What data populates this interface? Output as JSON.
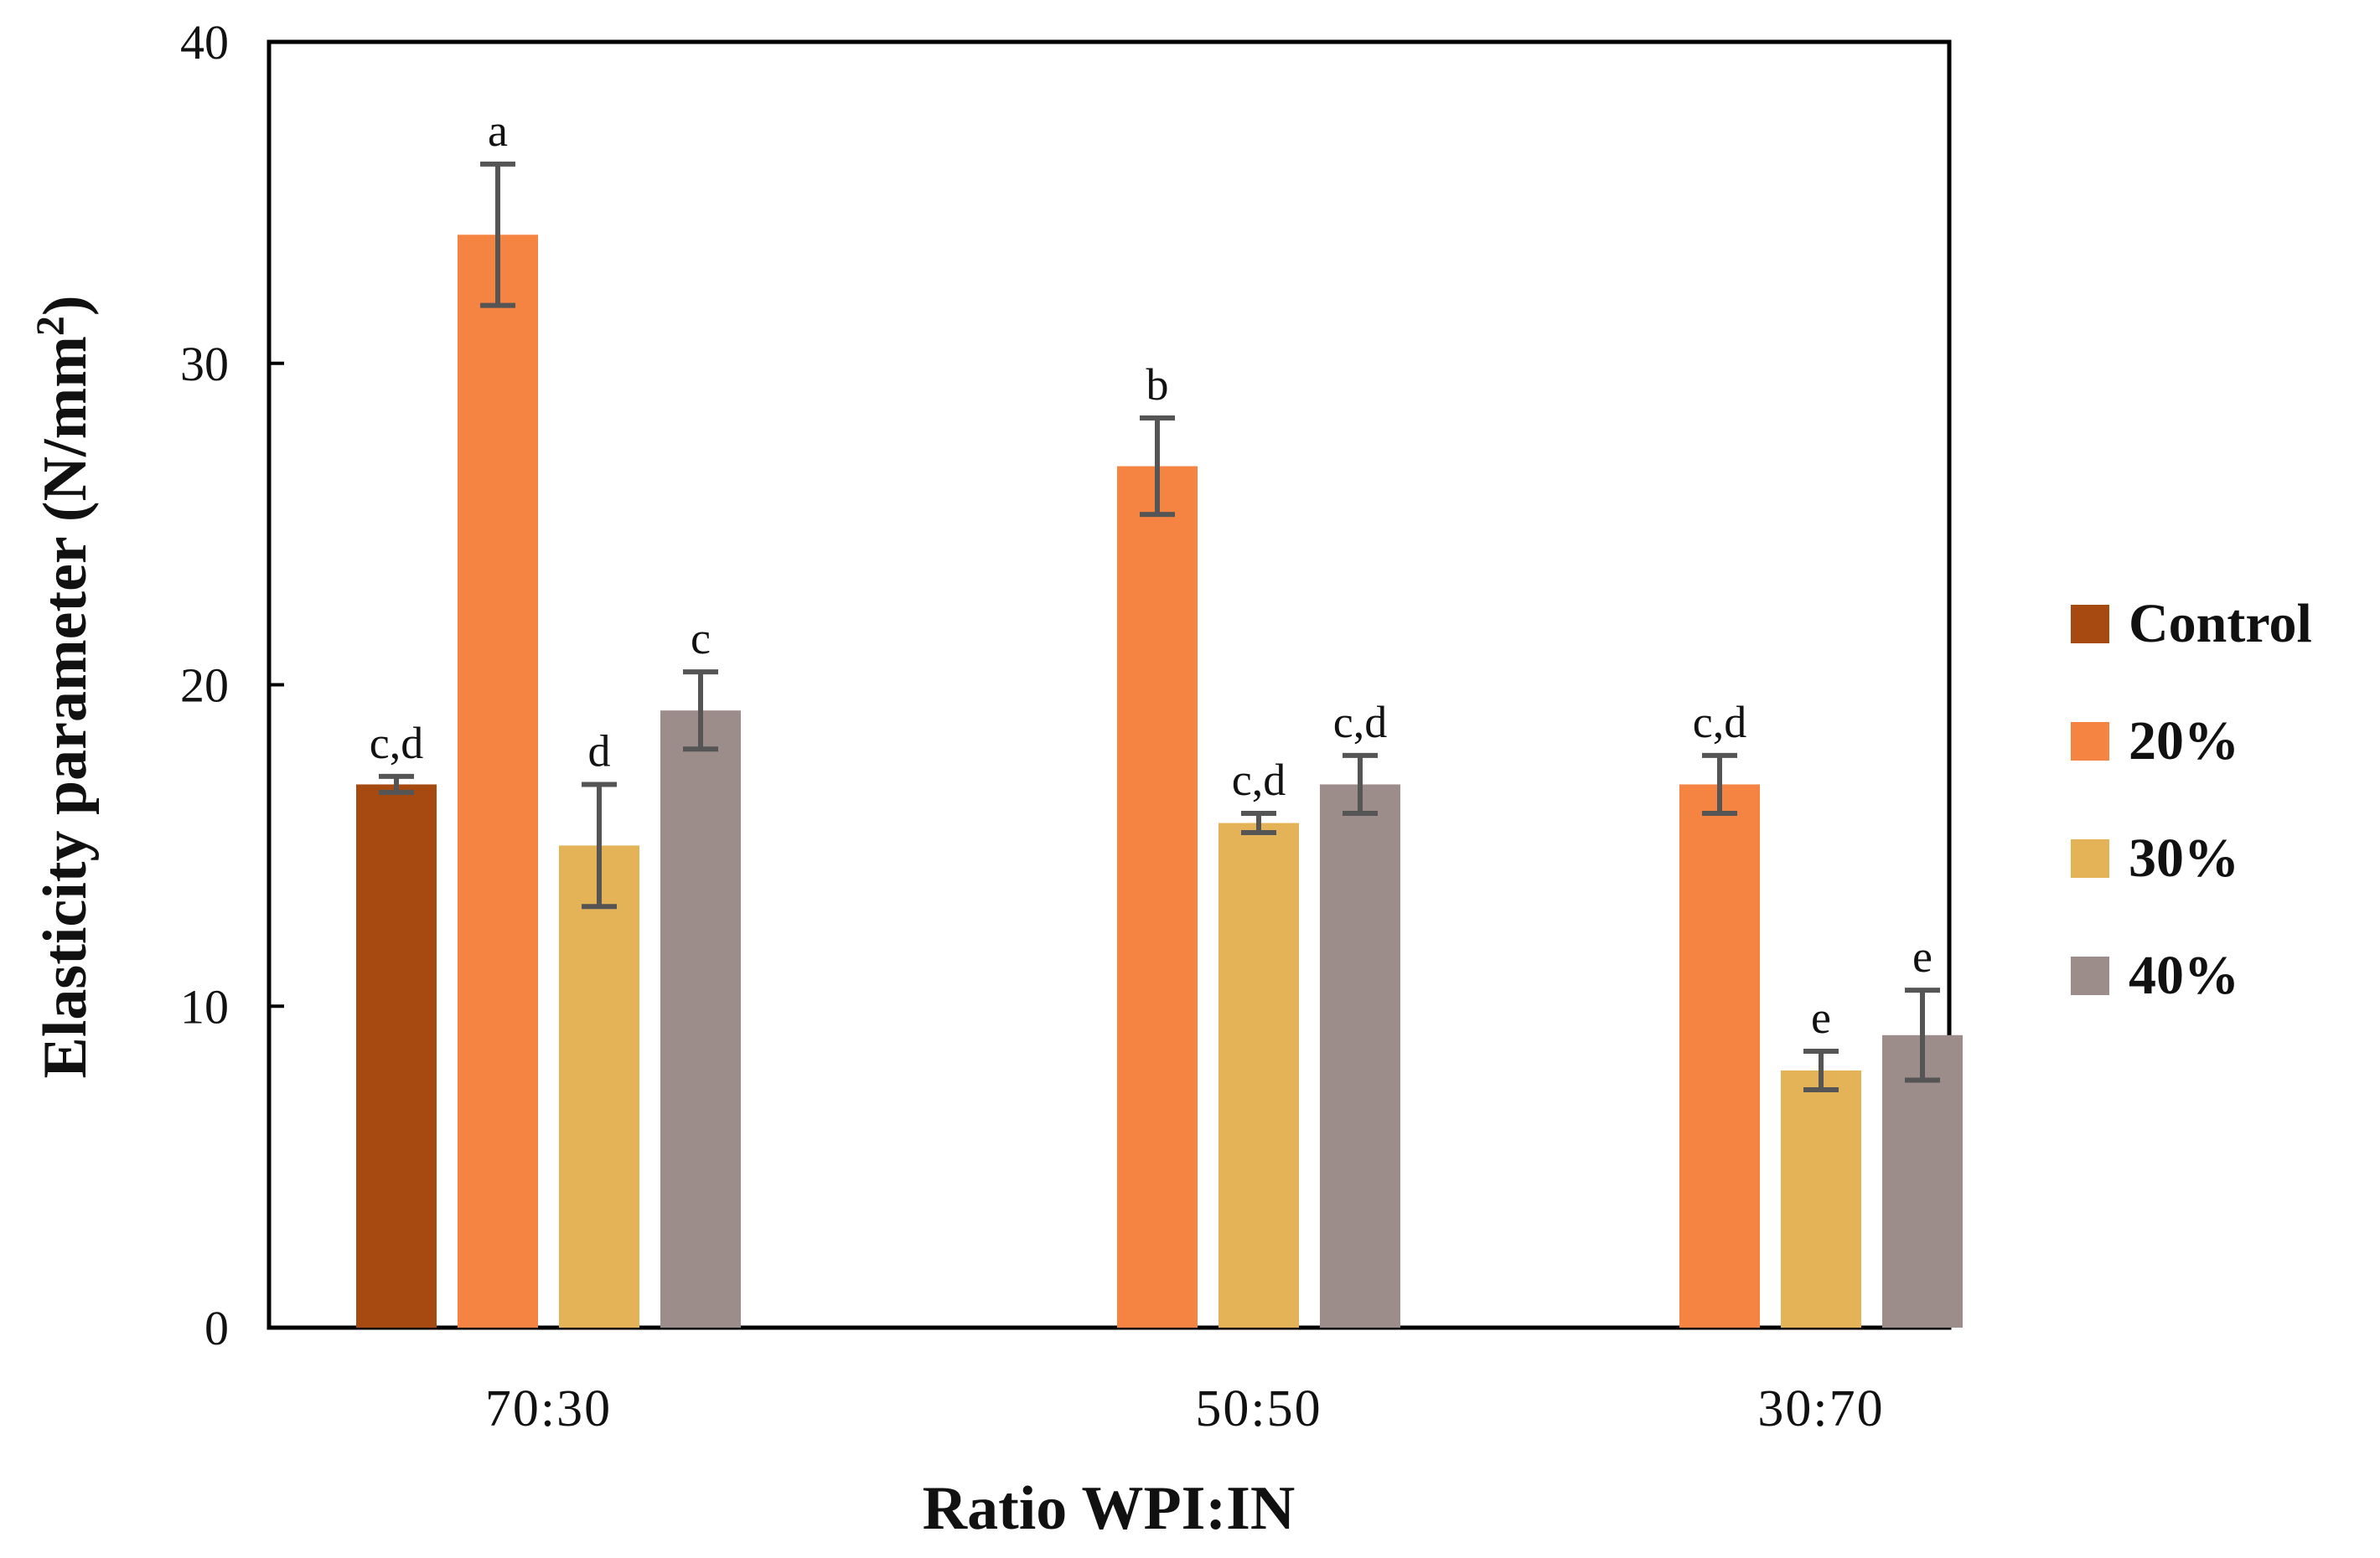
{
  "chart_data": {
    "type": "bar",
    "title": "",
    "xlabel": "Ratio WPI:IN",
    "ylabel_main": "Elasticity parameter (N/mm",
    "ylabel_sup": "2",
    "ylabel_close": ")",
    "ylim": [
      0,
      40
    ],
    "yticks": [
      0,
      10,
      20,
      30,
      40
    ],
    "grid": false,
    "legend_position": "right",
    "categories": [
      "70:30",
      "50:50",
      "30:70"
    ],
    "series": [
      {
        "name": "Control",
        "color": "#A64A12",
        "values": [
          16.9,
          null,
          null
        ],
        "errors": [
          0.25,
          null,
          null
        ],
        "labels": [
          "c,d",
          null,
          null
        ]
      },
      {
        "name": "20%",
        "color": "#F58443",
        "values": [
          34.0,
          26.8,
          16.9
        ],
        "errors": [
          2.2,
          1.5,
          0.9
        ],
        "labels": [
          "a",
          "b",
          "c,d"
        ]
      },
      {
        "name": "30%",
        "color": "#E5B357",
        "values": [
          15.0,
          15.7,
          8.0
        ],
        "errors": [
          1.9,
          0.3,
          0.6
        ],
        "labels": [
          "d",
          "c,d",
          "e"
        ]
      },
      {
        "name": "40%",
        "color": "#9C8C8A",
        "values": [
          19.2,
          16.9,
          9.1
        ],
        "errors": [
          1.2,
          0.9,
          1.4
        ],
        "labels": [
          "c",
          "c,d",
          "e"
        ]
      }
    ]
  }
}
